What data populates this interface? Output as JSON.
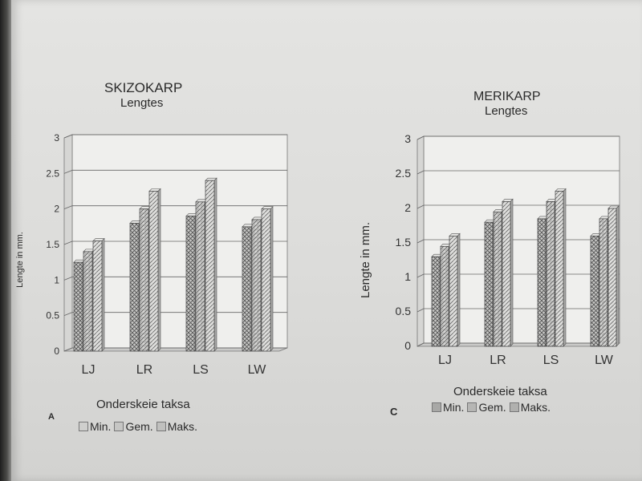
{
  "chart_data": [
    {
      "type": "bar",
      "panel_label": "A",
      "title": "SKIZOKARP",
      "subtitle": "Lengtes",
      "ylabel": "Lengte in mm.",
      "xlabel": "Onderskeie taksa",
      "categories": [
        "LJ",
        "LR",
        "LS",
        "LW"
      ],
      "yticks": [
        "0",
        "0.5",
        "1",
        "1.5",
        "2",
        "2.5",
        "3"
      ],
      "ylim": [
        0,
        3
      ],
      "grid": true,
      "legend_position": "bottom",
      "series": [
        {
          "name": "Min.",
          "values": [
            1.25,
            1.8,
            1.9,
            1.75
          ]
        },
        {
          "name": "Gem.",
          "values": [
            1.4,
            2.0,
            2.1,
            1.85
          ]
        },
        {
          "name": "Maks.",
          "values": [
            1.55,
            2.25,
            2.4,
            2.0
          ]
        }
      ]
    },
    {
      "type": "bar",
      "panel_label": "C",
      "title": "MERIKARP",
      "subtitle": "Lengtes",
      "ylabel": "Lengte in mm.",
      "xlabel": "Onderskeie taksa",
      "categories": [
        "LJ",
        "LR",
        "LS",
        "LW"
      ],
      "yticks": [
        "0",
        "0.5",
        "1",
        "1.5",
        "2",
        "2.5",
        "3"
      ],
      "ylim": [
        0,
        3
      ],
      "grid": true,
      "legend_position": "bottom",
      "series": [
        {
          "name": "Min.",
          "values": [
            1.3,
            1.8,
            1.85,
            1.6
          ]
        },
        {
          "name": "Gem.",
          "values": [
            1.45,
            1.95,
            2.1,
            1.85
          ]
        },
        {
          "name": "Maks.",
          "values": [
            1.6,
            2.1,
            2.25,
            2.0
          ]
        }
      ]
    }
  ],
  "colors": {
    "min": "#9a9a98",
    "gem": "#b8b8b6",
    "maks": "#d0d0ce",
    "grid": "#6a6a6a"
  }
}
